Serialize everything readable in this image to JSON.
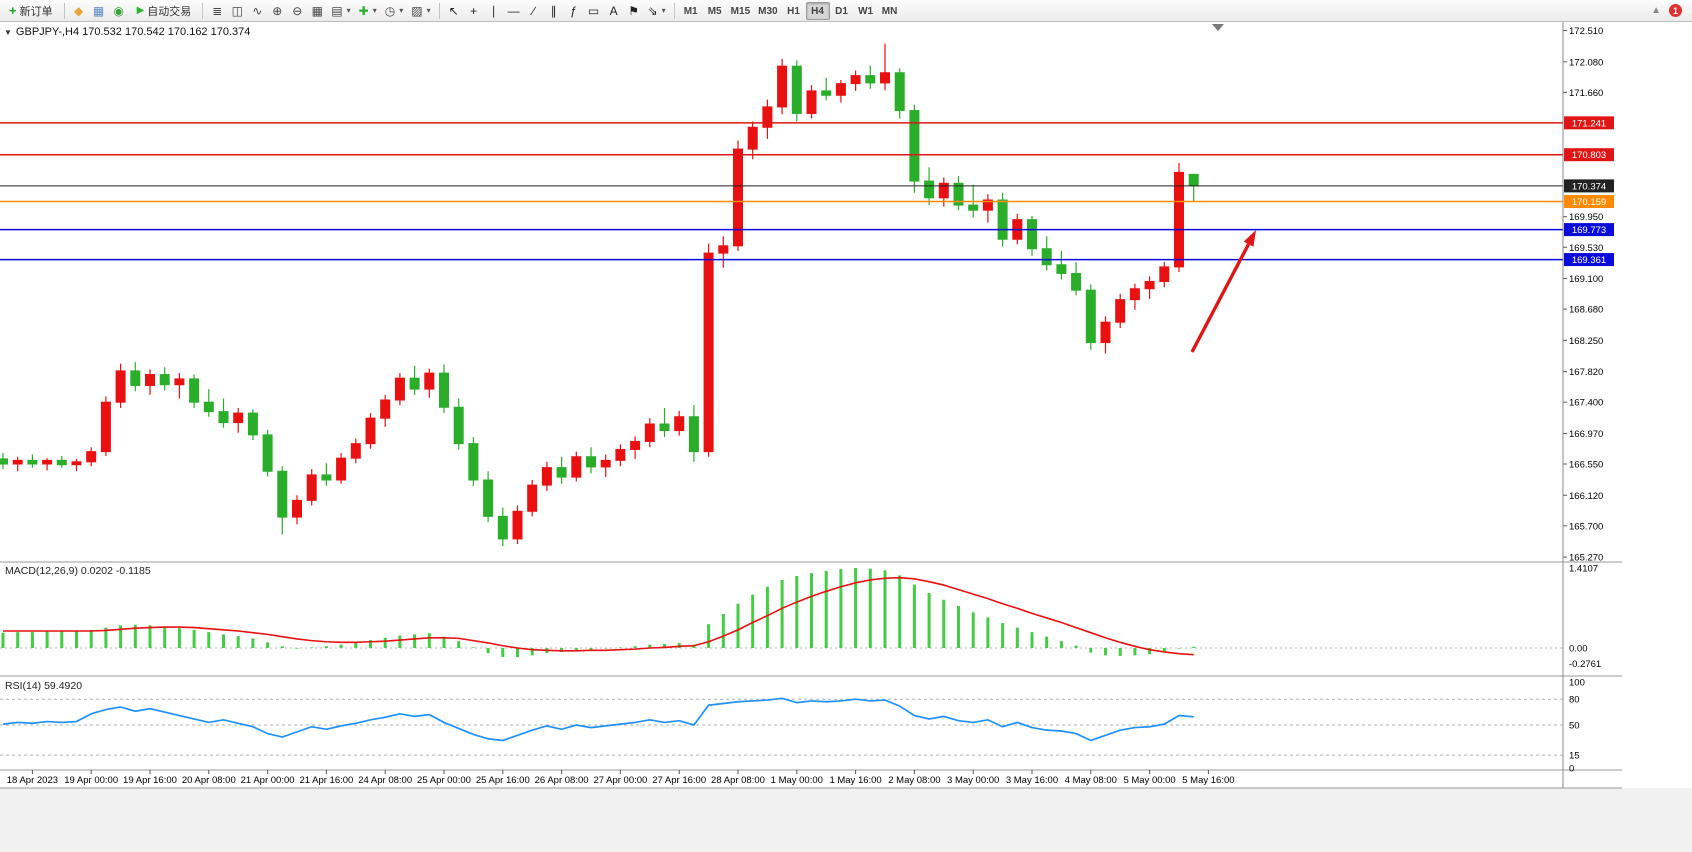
{
  "colors": {
    "candle_up": "#e81010",
    "candle_down": "#2aae2a",
    "macd_hist": "#44cc44",
    "macd_signal": "#e81010",
    "rsi_line": "#1e90ff",
    "arrow": "#e01616",
    "axis_text": "#000000",
    "panel_border": "#9a9a9a"
  },
  "toolbar": {
    "new_order_label": "新订单",
    "autotrade_label": "自动交易",
    "notification_count": "1",
    "timeframes": [
      "M1",
      "M5",
      "M15",
      "M30",
      "H1",
      "H4",
      "D1",
      "W1",
      "MN"
    ],
    "active_timeframe": "H4",
    "left_icons": [
      {
        "name": "market-icon",
        "glyph": "◆",
        "color": "#e8a33d"
      },
      {
        "name": "charts-grid-icon",
        "glyph": "▦",
        "color": "#5b87c5"
      },
      {
        "name": "sound-icon",
        "glyph": "◉",
        "color": "#36a336"
      }
    ],
    "chart_icons": [
      {
        "name": "bar-chart-icon",
        "glyph": "≣",
        "color": "#444444"
      },
      {
        "name": "candlestick-chart-icon",
        "glyph": "◫",
        "color": "#444444"
      },
      {
        "name": "line-chart-icon",
        "glyph": "∿",
        "color": "#444444"
      },
      {
        "name": "zoom-in-icon",
        "glyph": "⊕",
        "color": "#444444"
      },
      {
        "name": "zoom-out-icon",
        "glyph": "⊖",
        "color": "#444444"
      },
      {
        "name": "tile-windows-icon",
        "glyph": "▦",
        "color": "#444444"
      },
      {
        "name": "auto-arrange-icon",
        "glyph": "▤",
        "color": "#444444",
        "caret": true
      },
      {
        "name": "indicators-icon",
        "glyph": "✚",
        "color": "#2aae2a",
        "caret": true
      },
      {
        "name": "periods-icon",
        "glyph": "◷",
        "color": "#444444",
        "caret": true
      },
      {
        "name": "templates-icon",
        "glyph": "▨",
        "color": "#444444",
        "caret": true
      }
    ],
    "draw_icons": [
      {
        "name": "cursor-icon",
        "glyph": "↖",
        "color": "#222222"
      },
      {
        "name": "crosshair-icon",
        "glyph": "+",
        "color": "#222222"
      },
      {
        "name": "vertical-line-icon",
        "glyph": "∣",
        "color": "#222222"
      },
      {
        "name": "horizontal-line-icon",
        "glyph": "—",
        "color": "#222222"
      },
      {
        "name": "trendline-icon",
        "glyph": "∕",
        "color": "#222222"
      },
      {
        "name": "channel-icon",
        "glyph": "∥",
        "color": "#222222"
      },
      {
        "name": "fibonacci-icon",
        "glyph": "ƒ",
        "color": "#222222"
      },
      {
        "name": "shapes-icon",
        "glyph": "▭",
        "color": "#222222"
      },
      {
        "name": "text-icon",
        "glyph": "A",
        "color": "#222222"
      },
      {
        "name": "label-icon",
        "glyph": "⚑",
        "color": "#222222"
      },
      {
        "name": "arrows-icon",
        "glyph": "⇘",
        "color": "#222222",
        "caret": true
      }
    ]
  },
  "chart": {
    "header": "GBPJPY-,H4 170.532 170.542 170.162 170.374",
    "macd_label": "MACD(12,26,9) 0.0202 -0.1185",
    "rsi_label": "RSI(14) 59.4920"
  },
  "chart_data": {
    "type": "candlestick",
    "symbol": "GBPJPY-",
    "timeframe": "H4",
    "ohlc_display": {
      "open": "170.532",
      "high": "170.542",
      "low": "170.162",
      "close": "170.374"
    },
    "price_ticks": [
      "172.510",
      "172.080",
      "171.660",
      "169.950",
      "169.530",
      "169.100",
      "168.680",
      "168.250",
      "167.820",
      "167.400",
      "166.970",
      "166.550",
      "166.120",
      "165.700",
      "165.270"
    ],
    "levels": [
      {
        "label": "171.241",
        "value": 171.241,
        "color": "#e01616",
        "kind": "resistance"
      },
      {
        "label": "170.803",
        "value": 170.803,
        "color": "#e01616",
        "kind": "resistance"
      },
      {
        "label": "170.374",
        "value": 170.374,
        "color": "#222222",
        "kind": "current-price"
      },
      {
        "label": "170.159",
        "value": 170.159,
        "color": "#ff8a00",
        "kind": "pivot"
      },
      {
        "label": "169.773",
        "value": 169.773,
        "color": "#0b0bdc",
        "kind": "support"
      },
      {
        "label": "169.361",
        "value": 169.361,
        "color": "#0b0bdc",
        "kind": "support"
      }
    ],
    "time_labels": [
      "18 Apr 2023",
      "19 Apr 00:00",
      "19 Apr 16:00",
      "20 Apr 08:00",
      "21 Apr 00:00",
      "21 Apr 16:00",
      "24 Apr 08:00",
      "25 Apr 00:00",
      "25 Apr 16:00",
      "26 Apr 08:00",
      "27 Apr 00:00",
      "27 Apr 16:00",
      "28 Apr 08:00",
      "1 May 00:00",
      "1 May 16:00",
      "2 May 08:00",
      "3 May 00:00",
      "3 May 16:00",
      "4 May 08:00",
      "5 May 00:00",
      "5 May 16:00"
    ],
    "first_label_index": 2,
    "label_step": 4,
    "price_range": [
      165.27,
      172.51
    ],
    "candles": [
      [
        166.62,
        166.7,
        166.48,
        166.55
      ],
      [
        166.55,
        166.65,
        166.45,
        166.6
      ],
      [
        166.6,
        166.68,
        166.5,
        166.55
      ],
      [
        166.55,
        166.63,
        166.46,
        166.6
      ],
      [
        166.6,
        166.66,
        166.5,
        166.54
      ],
      [
        166.54,
        166.62,
        166.45,
        166.58
      ],
      [
        166.58,
        166.78,
        166.52,
        166.72
      ],
      [
        166.72,
        167.48,
        166.66,
        167.4
      ],
      [
        167.4,
        167.93,
        167.32,
        167.83
      ],
      [
        167.83,
        167.95,
        167.55,
        167.63
      ],
      [
        167.63,
        167.85,
        167.5,
        167.78
      ],
      [
        167.78,
        167.88,
        167.56,
        167.64
      ],
      [
        167.64,
        167.8,
        167.45,
        167.72
      ],
      [
        167.72,
        167.78,
        167.32,
        167.4
      ],
      [
        167.4,
        167.58,
        167.2,
        167.27
      ],
      [
        167.27,
        167.45,
        167.05,
        167.12
      ],
      [
        167.12,
        167.32,
        166.98,
        167.25
      ],
      [
        167.25,
        167.3,
        166.88,
        166.95
      ],
      [
        166.95,
        167.02,
        166.38,
        166.45
      ],
      [
        166.45,
        166.52,
        165.58,
        165.82
      ],
      [
        165.82,
        166.12,
        165.72,
        166.05
      ],
      [
        166.05,
        166.48,
        165.98,
        166.4
      ],
      [
        166.4,
        166.56,
        166.25,
        166.33
      ],
      [
        166.33,
        166.7,
        166.28,
        166.63
      ],
      [
        166.63,
        166.9,
        166.56,
        166.83
      ],
      [
        166.83,
        167.25,
        166.76,
        167.18
      ],
      [
        167.18,
        167.5,
        167.06,
        167.43
      ],
      [
        167.43,
        167.8,
        167.36,
        167.73
      ],
      [
        167.73,
        167.9,
        167.5,
        167.58
      ],
      [
        167.58,
        167.86,
        167.46,
        167.8
      ],
      [
        167.8,
        167.92,
        167.25,
        167.33
      ],
      [
        167.33,
        167.45,
        166.75,
        166.83
      ],
      [
        166.83,
        166.92,
        166.25,
        166.33
      ],
      [
        166.33,
        166.45,
        165.75,
        165.83
      ],
      [
        165.83,
        165.95,
        165.42,
        165.52
      ],
      [
        165.52,
        165.98,
        165.45,
        165.9
      ],
      [
        165.9,
        166.33,
        165.83,
        166.26
      ],
      [
        166.26,
        166.58,
        166.18,
        166.5
      ],
      [
        166.5,
        166.65,
        166.28,
        166.37
      ],
      [
        166.37,
        166.72,
        166.31,
        166.65
      ],
      [
        166.65,
        166.78,
        166.42,
        166.51
      ],
      [
        166.51,
        166.68,
        166.37,
        166.6
      ],
      [
        166.6,
        166.82,
        166.52,
        166.75
      ],
      [
        166.75,
        166.93,
        166.62,
        166.86
      ],
      [
        166.86,
        167.18,
        166.78,
        167.1
      ],
      [
        167.1,
        167.32,
        166.92,
        167.01
      ],
      [
        167.01,
        167.28,
        166.94,
        167.2
      ],
      [
        167.2,
        167.36,
        166.58,
        166.72
      ],
      [
        166.72,
        169.58,
        166.65,
        169.45
      ],
      [
        169.45,
        169.68,
        169.25,
        169.55
      ],
      [
        169.55,
        171.0,
        169.48,
        170.88
      ],
      [
        170.88,
        171.26,
        170.74,
        171.18
      ],
      [
        171.18,
        171.56,
        171.02,
        171.46
      ],
      [
        171.46,
        172.12,
        171.36,
        172.02
      ],
      [
        172.02,
        172.1,
        171.26,
        171.37
      ],
      [
        171.37,
        171.76,
        171.3,
        171.68
      ],
      [
        171.68,
        171.86,
        171.55,
        171.62
      ],
      [
        171.62,
        171.83,
        171.52,
        171.78
      ],
      [
        171.78,
        171.96,
        171.68,
        171.89
      ],
      [
        171.89,
        172.03,
        171.71,
        171.79
      ],
      [
        171.79,
        172.33,
        171.69,
        171.93
      ],
      [
        171.93,
        171.99,
        171.3,
        171.41
      ],
      [
        171.41,
        171.49,
        170.28,
        170.44
      ],
      [
        170.44,
        170.63,
        170.11,
        170.21
      ],
      [
        170.21,
        170.49,
        170.09,
        170.41
      ],
      [
        170.41,
        170.51,
        170.04,
        170.11
      ],
      [
        170.11,
        170.39,
        169.94,
        170.04
      ],
      [
        170.04,
        170.26,
        169.87,
        170.18
      ],
      [
        170.18,
        170.28,
        169.54,
        169.64
      ],
      [
        169.64,
        169.99,
        169.57,
        169.91
      ],
      [
        169.91,
        169.96,
        169.41,
        169.51
      ],
      [
        169.51,
        169.68,
        169.21,
        169.29
      ],
      [
        169.29,
        169.48,
        169.09,
        169.17
      ],
      [
        169.17,
        169.33,
        168.87,
        168.94
      ],
      [
        168.94,
        169.02,
        168.12,
        168.22
      ],
      [
        168.22,
        168.58,
        168.07,
        168.5
      ],
      [
        168.5,
        168.89,
        168.42,
        168.81
      ],
      [
        168.81,
        169.03,
        168.67,
        168.96
      ],
      [
        168.96,
        169.13,
        168.82,
        169.06
      ],
      [
        169.06,
        169.33,
        168.98,
        169.26
      ],
      [
        169.26,
        170.69,
        169.19,
        170.56
      ],
      [
        170.532,
        170.542,
        170.162,
        170.374
      ]
    ],
    "indicators": [
      {
        "name": "MACD(12,26,9)",
        "values_label": "0.0202 -0.1185",
        "axis": [
          "1.4107",
          "0.00",
          "-0.2761"
        ],
        "histogram": [
          0.27,
          0.28,
          0.28,
          0.29,
          0.3,
          0.29,
          0.32,
          0.36,
          0.4,
          0.41,
          0.4,
          0.38,
          0.35,
          0.32,
          0.28,
          0.24,
          0.21,
          0.17,
          0.1,
          0.03,
          -0.01,
          0.01,
          0.03,
          0.06,
          0.1,
          0.14,
          0.18,
          0.22,
          0.24,
          0.26,
          0.2,
          0.12,
          0.01,
          -0.09,
          -0.16,
          -0.16,
          -0.13,
          -0.09,
          -0.07,
          -0.04,
          -0.03,
          -0.01,
          0.01,
          0.03,
          0.06,
          0.07,
          0.09,
          0.06,
          0.42,
          0.6,
          0.78,
          0.94,
          1.08,
          1.2,
          1.27,
          1.32,
          1.36,
          1.39,
          1.41,
          1.4,
          1.37,
          1.28,
          1.12,
          0.97,
          0.85,
          0.74,
          0.63,
          0.54,
          0.44,
          0.36,
          0.28,
          0.2,
          0.12,
          0.04,
          -0.08,
          -0.13,
          -0.14,
          -0.13,
          -0.11,
          -0.08,
          -0.01,
          0.0202
        ],
        "signal": [
          0.3,
          0.3,
          0.3,
          0.3,
          0.3,
          0.3,
          0.3,
          0.31,
          0.33,
          0.35,
          0.36,
          0.37,
          0.37,
          0.36,
          0.34,
          0.32,
          0.3,
          0.27,
          0.24,
          0.2,
          0.16,
          0.13,
          0.11,
          0.1,
          0.1,
          0.11,
          0.12,
          0.14,
          0.16,
          0.18,
          0.18,
          0.17,
          0.13,
          0.09,
          0.04,
          0.0,
          -0.03,
          -0.04,
          -0.05,
          -0.05,
          -0.04,
          -0.04,
          -0.03,
          -0.02,
          0.0,
          0.01,
          0.03,
          0.04,
          0.11,
          0.21,
          0.32,
          0.45,
          0.57,
          0.7,
          0.81,
          0.91,
          1.0,
          1.08,
          1.15,
          1.2,
          1.23,
          1.24,
          1.22,
          1.17,
          1.11,
          1.03,
          0.95,
          0.87,
          0.78,
          0.7,
          0.61,
          0.53,
          0.45,
          0.36,
          0.27,
          0.18,
          0.1,
          0.03,
          -0.03,
          -0.07,
          -0.1,
          -0.1185
        ]
      },
      {
        "name": "RSI(14)",
        "values_label": "59.4920",
        "axis": [
          "100",
          "80",
          "50",
          "15",
          "0"
        ],
        "levels": [
          80,
          50,
          15
        ],
        "line": [
          51,
          53,
          52,
          54,
          53,
          54,
          63,
          68,
          71,
          66,
          69,
          65,
          61,
          57,
          53,
          56,
          52,
          48,
          40,
          36,
          42,
          48,
          45,
          49,
          52,
          56,
          59,
          63,
          60,
          62,
          53,
          46,
          39,
          34,
          32,
          38,
          44,
          49,
          45,
          50,
          47,
          49,
          51,
          53,
          56,
          53,
          55,
          50,
          73,
          75,
          77,
          78,
          79,
          81,
          76,
          78,
          77,
          78,
          80,
          78,
          79,
          72,
          61,
          57,
          60,
          55,
          53,
          56,
          48,
          53,
          47,
          44,
          43,
          40,
          32,
          38,
          44,
          47,
          48,
          51,
          61,
          59.492
        ]
      }
    ],
    "annotations": [
      {
        "name": "trend-arrow",
        "from": [
          1192,
          352
        ],
        "to": [
          1256,
          230
        ]
      }
    ]
  }
}
